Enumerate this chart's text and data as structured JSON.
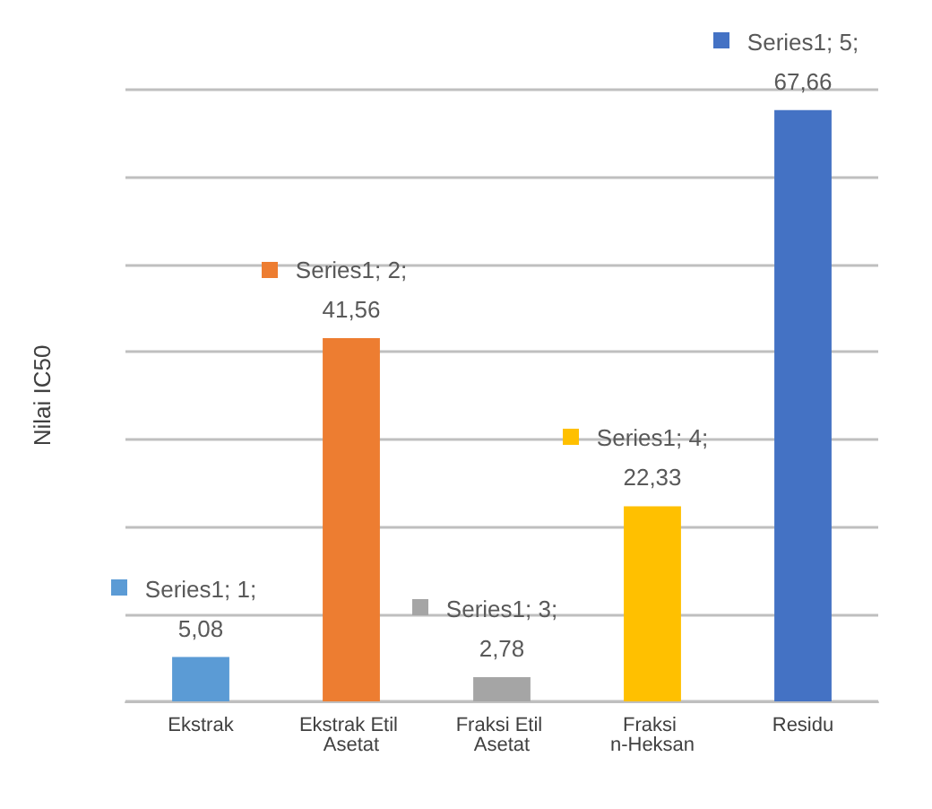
{
  "chart_data": {
    "type": "bar",
    "ylabel": "Nilai IC50",
    "categories": [
      "Ekstrak",
      "Ekstrak Etil Asetat",
      "Fraksi Etil Asetat",
      "Fraksi n-Heksan",
      "Residu"
    ],
    "values": [
      5.08,
      41.56,
      2.78,
      22.33,
      67.66
    ],
    "colors": [
      "#5b9bd5",
      "#ed7d31",
      "#a5a5a5",
      "#ffc000",
      "#4472c4"
    ],
    "value_labels": [
      "Series1; 1; 5,08",
      "Series1; 2; 41,56",
      "Series1; 3; 2,78",
      "Series1; 4; 22,33",
      "Series1; 5; 67,66"
    ],
    "ylim": [
      0,
      70
    ],
    "yticks": [
      {
        "value": 0,
        "label": null
      },
      {
        "value": 10,
        "label": null
      },
      {
        "value": 20,
        "label": null
      },
      {
        "value": 30,
        "label": null
      },
      {
        "value": 40,
        "label": null
      },
      {
        "value": 50,
        "label": null
      },
      {
        "value": 60,
        "label": null
      },
      {
        "value": 70,
        "label": null
      }
    ],
    "grid": "y",
    "tick_labels": "x"
  }
}
